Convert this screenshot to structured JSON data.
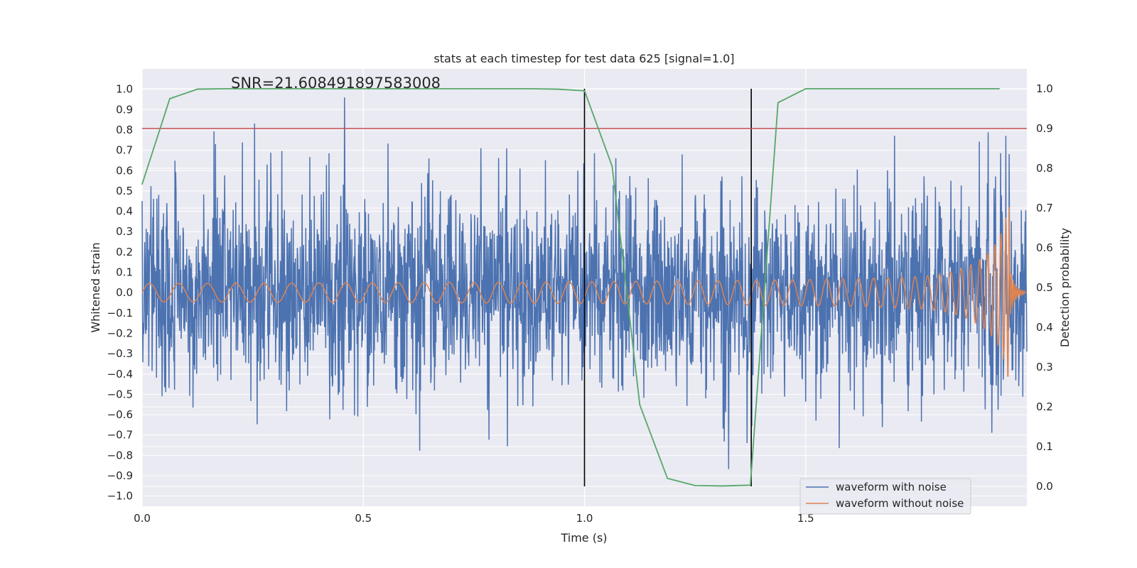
{
  "chart_data": {
    "type": "line",
    "title": "stats at each timestep for test data 625 [signal=1.0]",
    "xlabel": "Time (s)",
    "ylabel": "Whitened strain",
    "y2label": "Detection probability",
    "annotation": "SNR=21.608491897583008",
    "xlim": [
      0.0,
      2.0
    ],
    "ylim": [
      -1.05,
      1.1
    ],
    "y2lim": [
      -0.05,
      1.05
    ],
    "xticks": [
      "0.0",
      "0.5",
      "1.0",
      "1.5"
    ],
    "yticks": [
      "1.0",
      "0.9",
      "0.8",
      "0.7",
      "0.6",
      "0.5",
      "0.4",
      "0.3",
      "0.2",
      "0.1",
      "0.0",
      "−0.1",
      "−0.2",
      "−0.3",
      "−0.4",
      "−0.5",
      "−0.6",
      "−0.7",
      "−0.8",
      "−0.9",
      "−1.0"
    ],
    "y2ticks": [
      "1.0",
      "0.9",
      "0.8",
      "0.7",
      "0.6",
      "0.5",
      "0.4",
      "0.3",
      "0.2",
      "0.1",
      "0.0"
    ],
    "grid": true,
    "legend_position": "bottom-right",
    "threshold": {
      "value": 0.9,
      "axis": "right",
      "color": "#c44e52"
    },
    "vlines": [
      1.0,
      1.377
    ],
    "vline_range": [
      0.0,
      1.0
    ],
    "series": [
      {
        "name": "waveform with noise",
        "axis": "left",
        "color": "#4c72b0",
        "style": "noise",
        "std": 0.24
      },
      {
        "name": "waveform without noise",
        "axis": "left",
        "color": "#dd8452",
        "style": "chirp"
      },
      {
        "axis": "right",
        "color": "#55a868",
        "x": [
          0.0,
          0.0625,
          0.125,
          0.1875,
          0.25,
          0.3125,
          0.375,
          0.4375,
          0.5,
          0.5625,
          0.625,
          0.6875,
          0.75,
          0.8125,
          0.875,
          0.9375,
          1.0,
          1.0625,
          1.125,
          1.1875,
          1.25,
          1.3125,
          1.375,
          1.4375,
          1.5,
          1.5625,
          1.625,
          1.6875,
          1.75,
          1.8125,
          1.875,
          1.9375
        ],
        "y": [
          0.76,
          0.975,
          0.999,
          1.0,
          1.0,
          1.0,
          1.0,
          1.0,
          1.0,
          1.0,
          1.0,
          1.0,
          1.0,
          1.0,
          1.0,
          0.999,
          0.995,
          0.805,
          0.205,
          0.02,
          0.002,
          0.001,
          0.003,
          0.965,
          1.0,
          1.0,
          1.0,
          1.0,
          1.0,
          1.0,
          1.0,
          1.0
        ]
      }
    ]
  }
}
